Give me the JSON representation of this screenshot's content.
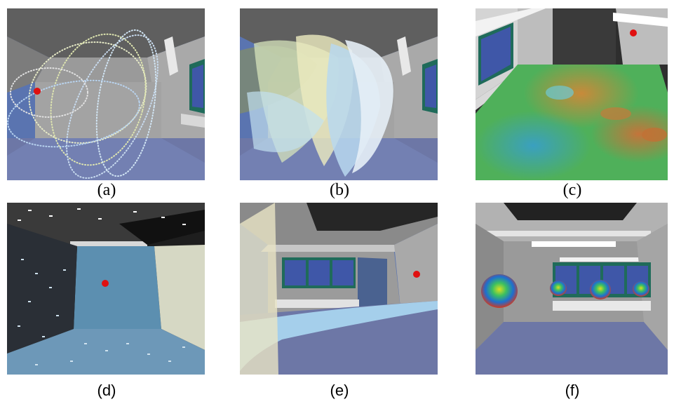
{
  "figure": {
    "panels": [
      {
        "id": "a",
        "label": "(a)"
      },
      {
        "id": "b",
        "label": "(b)"
      },
      {
        "id": "c",
        "label": "(c)"
      },
      {
        "id": "d",
        "label": "(d)"
      },
      {
        "id": "e",
        "label": "(e)"
      },
      {
        "id": "f",
        "label": "(f)"
      }
    ]
  },
  "colors": {
    "sky_blue": "#5a74b0",
    "wall_gray": "#8f8f8f",
    "floor_blue": "#6e78a8",
    "window_green": "#1f6b5a",
    "window_glass": "#3f57a8",
    "source_red": "#e01010"
  }
}
